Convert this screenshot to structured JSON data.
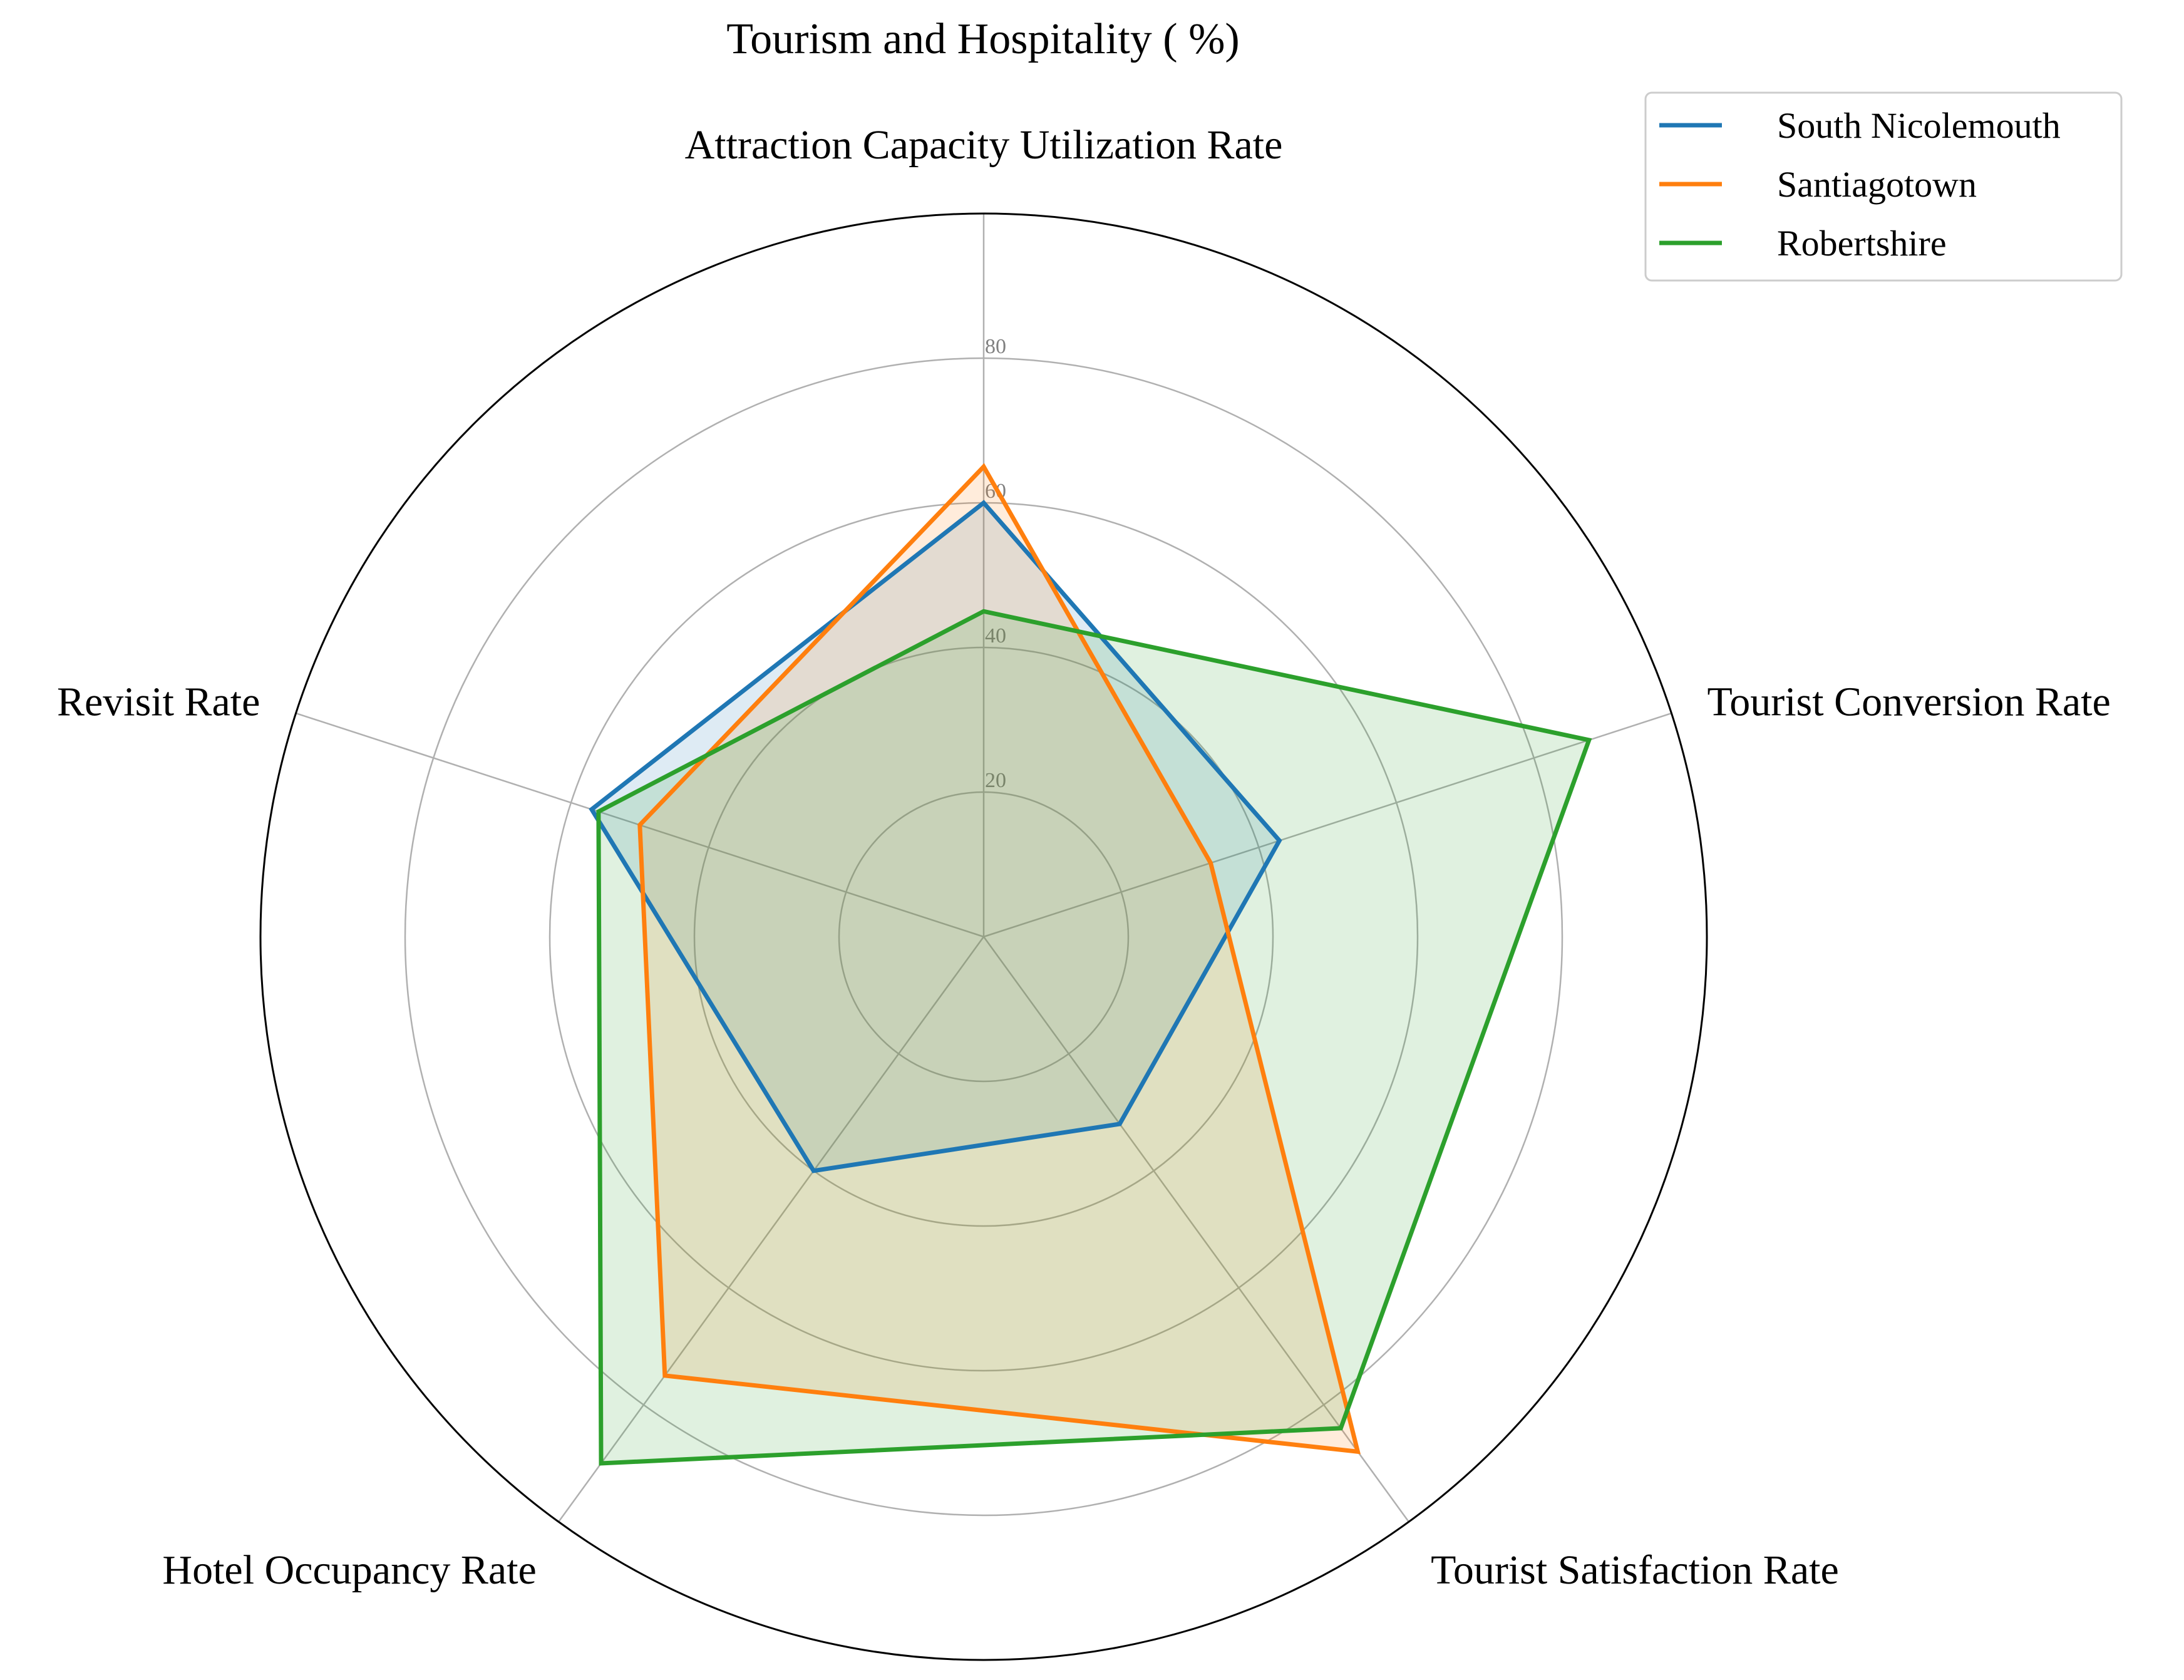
{
  "chart_data": {
    "type": "radar",
    "title": "Tourism and Hospitality ( %)",
    "axes": [
      "Attraction Capacity Utilization Rate",
      "Tourist Conversion Rate",
      "Tourist Satisfaction Rate",
      "Hotel Occupancy Rate",
      "Revisit Rate"
    ],
    "r_range": [
      0,
      100
    ],
    "r_ticks": [
      20,
      40,
      60,
      80
    ],
    "r_tick_labels": [
      "20",
      "40",
      "60",
      "80"
    ],
    "grid": true,
    "legend_position": "top-right",
    "series": [
      {
        "name": "South Nicolemouth",
        "color": "#1f77b4",
        "values": [
          60,
          43,
          32,
          40,
          57
        ]
      },
      {
        "name": "Santiagotown",
        "color": "#ff7f0e",
        "values": [
          65,
          33,
          88,
          75,
          50
        ]
      },
      {
        "name": "Robertshire",
        "color": "#2ca02c",
        "values": [
          45,
          88,
          84,
          90,
          56
        ]
      }
    ]
  }
}
